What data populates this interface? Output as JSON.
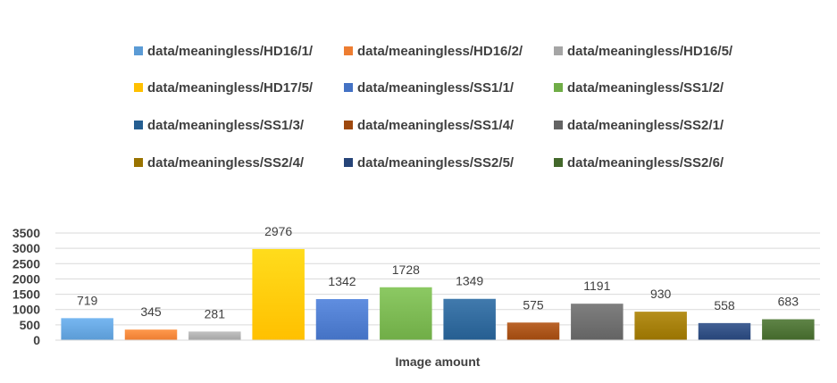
{
  "chart_data": {
    "type": "bar",
    "title": "",
    "xlabel": "Image amount",
    "ylabel": "",
    "ylim": [
      0,
      3500
    ],
    "yticks": [
      0,
      500,
      1000,
      1500,
      2000,
      2500,
      3000,
      3500
    ],
    "grid": true,
    "legend_position": "top",
    "categories": [
      "Image amount"
    ],
    "series": [
      {
        "name": "data/meaningless/HD16/1/",
        "values": [
          719
        ],
        "color": "#5b9bd5"
      },
      {
        "name": "data/meaningless/HD16/2/",
        "values": [
          345
        ],
        "color": "#ed7d31"
      },
      {
        "name": "data/meaningless/HD16/5/",
        "values": [
          281
        ],
        "color": "#a5a5a5"
      },
      {
        "name": "data/meaningless/HD17/5/",
        "values": [
          2976
        ],
        "color": "#ffc000"
      },
      {
        "name": "data/meaningless/SS1/1/",
        "values": [
          1342
        ],
        "color": "#4472c4"
      },
      {
        "name": "data/meaningless/SS1/2/",
        "values": [
          1728
        ],
        "color": "#70ad47"
      },
      {
        "name": "data/meaningless/SS1/3/",
        "values": [
          1349
        ],
        "color": "#255e91"
      },
      {
        "name": "data/meaningless/SS1/4/",
        "values": [
          575
        ],
        "color": "#9e480e"
      },
      {
        "name": "data/meaningless/SS2/1/",
        "values": [
          1191
        ],
        "color": "#636363"
      },
      {
        "name": "data/meaningless/SS2/4/",
        "values": [
          930
        ],
        "color": "#997300"
      },
      {
        "name": "data/meaningless/SS2/5/",
        "values": [
          558
        ],
        "color": "#264478"
      },
      {
        "name": "data/meaningless/SS2/6/",
        "values": [
          683
        ],
        "color": "#43682b"
      }
    ]
  }
}
